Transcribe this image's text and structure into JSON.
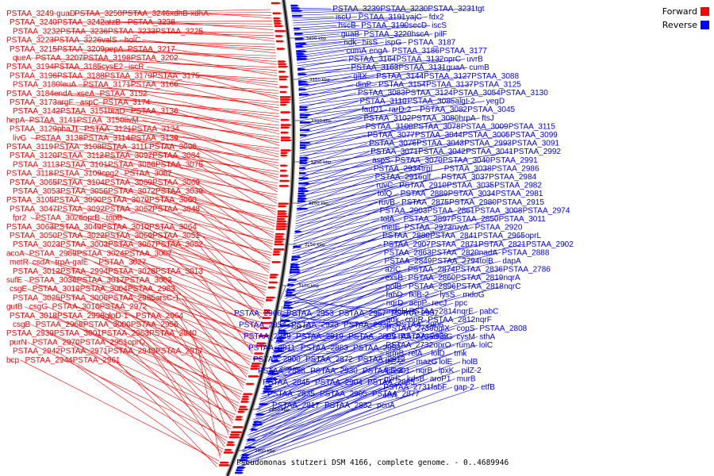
{
  "caption": "Pseudomonas stutzeri DSM 4166, complete genome. - 0..4689946",
  "legend": {
    "forward_label": "Forward",
    "reverse_label": "Reverse",
    "forward_color": "#ff0000",
    "reverse_color": "#0000ff"
  },
  "scale_ticks": [
    "3400 kbp",
    "3350 kbp",
    "3300 kbp",
    "3250 kbp",
    "3200 kbp",
    "3150 kbp",
    "3100 kbp",
    "3050 kbp",
    "3000 kbp",
    "2950 kbp",
    "2900 kbp"
  ],
  "forward_genes": [
    "PSTAA_3249-guaD",
    "PSTAA_3250",
    "PSTAA_3246",
    "xdhB-xdhA",
    "PSTAA_3240",
    "PSTAA_3242",
    "atzB",
    "PSTAA_3238",
    "PSTAA_3232",
    "PSTAA_3236",
    "PSTAA_3233",
    "PSTAA_3225",
    "PSTAA_3223",
    "PSTAA_3226",
    "valS",
    "holC",
    "PSTAA_3215",
    "PSTAA_3209",
    "pepA",
    "PSTAA_3217",
    "queA",
    "PSTAA_3207",
    "PSTAA_3198",
    "PSTAA_3202",
    "PSTAA_3194",
    "PSTAA_3185",
    "cysE2",
    "iscR",
    "PSTAA_3196",
    "PSTAA_3188",
    "PSTAA_3179",
    "PSTAA_3175",
    "PSTAA_3180",
    "leuA",
    "PSTAA_3171",
    "PSTAA_3166",
    "PSTAA_3184",
    "endA",
    "xseA",
    "PSTAA_3152",
    "PSTAA_3173",
    "argF",
    "aspC",
    "PSTAA_3174",
    "PSTAA_3142",
    "PSTAA_3151",
    "braD",
    "PSTAA_3136",
    "hepA",
    "PSTAA_3141",
    "PSTAA_3150",
    "livM",
    "PSTAA_3129",
    "phaJ1",
    "PSTAA_3121",
    "PSTAA_3134",
    "livG",
    "PSTAA_3138",
    "PSTAA_3114",
    "PSTAA_3139",
    "PSTAA_3119",
    "PSTAA_3108",
    "PSTAA_3111",
    "PSTAA_3096",
    "PSTAA_3120",
    "PSTAA_3112",
    "PSTAA_3097",
    "PSTAA_3084",
    "PSTAA_3113",
    "PSTAA_3101",
    "PSTAA_3086",
    "PSTAA_3075",
    "PSTAA_3118",
    "PSTAA_3109",
    "cpg2",
    "PSTAA_3087",
    "PSTAA_3065",
    "PSTAA_3104",
    "PSTAA_3089",
    "PSTAA_3069",
    "PSTAA_3053",
    "PSTAA_3056",
    "PSTAA_3072",
    "PSTAA_3039",
    "PSTAA_3105",
    "PSTAA_3090",
    "PSTAA_3079",
    "PSTAA_3060",
    "PSTAA_3047",
    "PSTAA_3092",
    "PSTAA_3062",
    "PSTAA_3048",
    "fpr2",
    "PSTAA_3026",
    "oprB",
    "topB",
    "PSTAA_3063",
    "PSTAA_3049",
    "PSTAA_3010",
    "PSTAA_3064",
    "PSTAA_3050",
    "PSTAA_3022",
    "PSTAA_3066",
    "PSTAA_3051",
    "PSTAA_3023",
    "PSTAA_3003",
    "PSTAA_3067",
    "PSTAA_3052",
    "acoA",
    "PSTAA_2989",
    "PSTAA_3024",
    "PSTAA_3007",
    "metR",
    "csdA",
    "trpA-galE",
    "PSTAA_3027",
    "PSTAA_3012",
    "PSTAA_2994",
    "PSTAA_3028",
    "PSTAA_3013",
    "sufE",
    "PSTAA_3036",
    "PSTAA_3017",
    "PSTAA_3002",
    "csgE",
    "PSTAA_3019",
    "PSTAA_3004",
    "PSTAA_2983",
    "PSTAA_3025",
    "PSTAA_3006",
    "PSTAA_2985",
    "arsC-1",
    "gutB",
    "csgG",
    "PSTAA_3016",
    "PSTAA_2972",
    "PSTAA_3018",
    "PSTAA_2998",
    "glpD-1",
    "PSTAA_2964",
    "csgB",
    "PSTAA_2968",
    "PSTAA_3000",
    "PSTAA_2956",
    "PSTAA_2939",
    "PSTAA_3001",
    "PSTAA_2963",
    "PSTAA_2940",
    "purN",
    "PSTAA_2970",
    "PSTAA_2951",
    "oprQ",
    "PSTAA_2942",
    "PSTAA_2971",
    "PSTAA_2943",
    "PSTAA_2917",
    "bcp",
    "PSTAA_2944",
    "PSTAA_2961"
  ],
  "reverse_genes_inner": [
    "PSTAA_2966",
    "PSTAA_2953",
    "PSTAA_2967",
    "PSTAA_2937",
    "PSTAA_2954",
    "PSTAA_2923",
    "PSTAA_2936",
    "PSTAA_2906",
    "PSTAA_2949",
    "PSTAA_2919",
    "PSTAA_2899",
    "PSTAA_2938",
    "PSTAA_2911",
    "PSTAA_2883",
    "PSTAA_2950",
    "PSTAA_2924",
    "PSTAA_2900",
    "PSTAA_2872",
    "PSTAA_2913",
    "PSTAA_2884",
    "PSTAA_2858",
    "PSTAA_2930",
    "PSTAA_2901",
    "PSTAA_2868",
    "PSTAA_2845",
    "PSTAA_2904",
    "PSTAA_2885",
    "PSTAA_2859",
    "PSTAA_2835",
    "PSTAA_2905",
    "PSTAA_2877",
    "PSTAA_2851",
    "PSTAA_2817",
    "PSTAA_2852",
    "pcoA",
    "PSTAA_2805"
  ],
  "reverse_genes_outer": [
    "PSTAA_3239",
    "PSTAA_3230",
    "PSTAA_3231",
    "tgt",
    "iscU",
    "PSTAA_3191",
    "yajC",
    "fdx2",
    "hscB",
    "PSTAA_3190",
    "secD",
    "iscS",
    "guaB",
    "PSTAA_3220",
    "hscA",
    "pilF",
    "ndk",
    "hisS",
    "ispG",
    "PSTAA_3187",
    "cumA",
    "engA",
    "PSTAA_3186",
    "PSTAA_3177",
    "PSTAA_3164",
    "PSTAA_3132",
    "oprC",
    "uvrB",
    "PSTAA_3163",
    "PSTAA_3131",
    "guaA",
    "cumB",
    "gltX",
    "PSTAA_3144",
    "PSTAA_3127",
    "PSTAA_3088",
    "dinP",
    "PSTAA_3154",
    "PSTAA_3137",
    "PSTAA_3125",
    "PSTAA_3083",
    "PSTAA_3124",
    "PSTAA_3054",
    "PSTAA_3130",
    "PSTAA_3110",
    "PSTAA_3085",
    "algI-2",
    "yegD",
    "fadD1",
    "rarD-2",
    "PSTAA_3082",
    "PSTAA_3045",
    "PSTAA_3102",
    "PSTAA_3080",
    "hrpA",
    "ftsJ",
    "PSTAA_3100",
    "PSTAA_3078",
    "PSTAA_3009",
    "PSTAA_3115",
    "PSTAA_3077",
    "PSTAA_3044",
    "PSTAA_3005",
    "PSTAA_3099",
    "PSTAA_3076",
    "PSTAA_3043",
    "PSTAA_2993",
    "PSTAA_3091",
    "PSTAA_3071",
    "PSTAA_3042",
    "PSTAA_3041",
    "PSTAA_2992",
    "aspS",
    "PSTAA_3070",
    "PSTAA_3040",
    "PSTAA_2991",
    "PSTAA_2934",
    "trpI",
    "PSTAA_3038",
    "PSTAA_2986",
    "PSTAA_2916",
    "glf",
    "PSTAA_3037",
    "PSTAA_2984",
    "ruvC",
    "PSTAA_2910",
    "PSTAA_3035",
    "PSTAA_2982",
    "tolQ",
    "PSTAA_2889",
    "PSTAA_3034",
    "PSTAA_2981",
    "ruvB",
    "PSTAA_2875",
    "PSTAA_2980",
    "PSTAA_2915",
    "PSTAA_2903",
    "PSTAA_2861",
    "PSTAA_3008",
    "PSTAA_2974",
    "tolA",
    "PSTAA_2897",
    "PSTAA_2850",
    "PSTAA_3011",
    "metE",
    "PSTAA_2973",
    "ruvA",
    "PSTAA_2920",
    "PSTAA_2880",
    "PSTAA_2841",
    "PSTAA_2965",
    "oprL",
    "PSTAA_2907",
    "PSTAA_2871",
    "PSTAA_2821",
    "PSTAA_2902",
    "PSTAA_2863",
    "PSTAA_2820",
    "nadA",
    "PSTAA_2888",
    "PSTAA_2849",
    "PSTAA_2794",
    "tolB",
    "dapA",
    "azlC",
    "PSTAA_2874",
    "PSTAA_2836",
    "PSTAA_2786",
    "exsB",
    "PSTAA_2860",
    "PSTAA_2819",
    "nqrA",
    "polB",
    "PSTAA_2896",
    "PSTAA_2818",
    "nqrC",
    "fabD",
    "fklB-2",
    "lysS",
    "mdoG",
    "nqrD",
    "acpP",
    "recJ",
    "ppc",
    "mdoH",
    "PSTAA_2814",
    "nqrE",
    "pabC",
    "adk",
    "copR",
    "PSTAA_2812",
    "nqrF",
    "PSTAA_2739",
    "bglX",
    "copS",
    "PSTAA_2808",
    "PSTAA_2735",
    "dsbG",
    "cysM",
    "sthA",
    "PSTAA_2732",
    "oprO",
    "rumA",
    "lolC",
    "srmB",
    "relA",
    "lolD",
    "tmk",
    "fliE-2",
    "mazG",
    "lolE",
    "holB",
    "fliE-2",
    "nqrB",
    "lpxK",
    "pilZ-2",
    "pyrF",
    "kdsB",
    "aroP1",
    "murB",
    "PSTAA_2731",
    "fabF",
    "gap-2",
    "etfB",
    "etfA"
  ]
}
